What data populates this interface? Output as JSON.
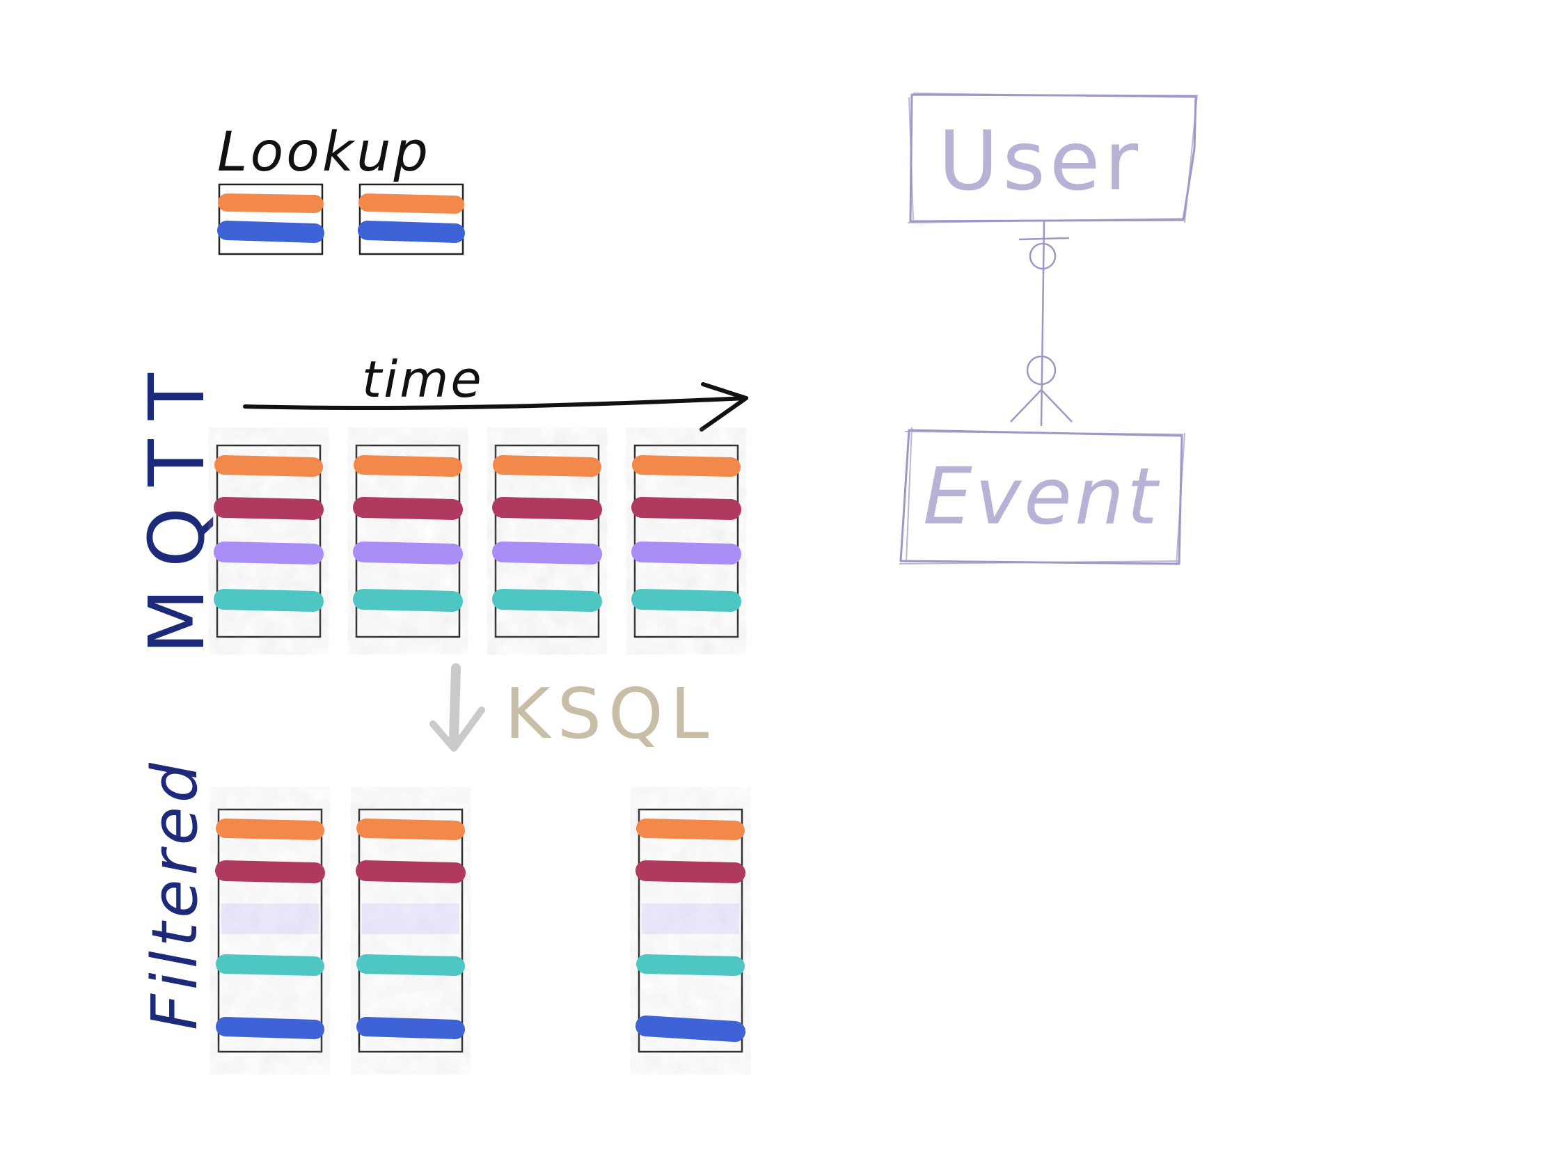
{
  "labels": {
    "lookup": "Lookup",
    "time": "time",
    "mqtt": "MQTT",
    "ksql": "KSQL",
    "filtered": "Filtered",
    "user": "User",
    "event": "Event"
  },
  "colors": {
    "orange": "#f2884a",
    "blue": "#3d63d6",
    "crimson": "#b03a5e",
    "violet": "#a98df7",
    "teal": "#4ec6c3",
    "ink_black": "#111111",
    "ink_navy": "#1d2a7a",
    "ink_beige": "#c8bda6",
    "ink_lavender": "#9b98c8",
    "arrow_gray": "#b9b9b9"
  },
  "lookup_boxes": [
    {
      "stripes": [
        "orange",
        "blue"
      ]
    },
    {
      "stripes": [
        "orange",
        "blue"
      ]
    }
  ],
  "mqtt_boxes": [
    {
      "stripes": [
        "orange",
        "crimson",
        "violet",
        "teal"
      ]
    },
    {
      "stripes": [
        "orange",
        "crimson",
        "violet",
        "teal"
      ]
    },
    {
      "stripes": [
        "orange",
        "crimson",
        "violet",
        "teal"
      ]
    },
    {
      "stripes": [
        "orange",
        "crimson",
        "violet",
        "teal"
      ]
    }
  ],
  "filtered_boxes": [
    {
      "stripes": [
        "orange",
        "crimson",
        "violet-faded",
        "teal",
        "blue"
      ]
    },
    {
      "stripes": [
        "orange",
        "crimson",
        "violet-faded",
        "teal",
        "blue"
      ]
    },
    {
      "stripes": [
        "orange",
        "crimson",
        "violet-faded",
        "teal",
        "blue"
      ]
    }
  ]
}
